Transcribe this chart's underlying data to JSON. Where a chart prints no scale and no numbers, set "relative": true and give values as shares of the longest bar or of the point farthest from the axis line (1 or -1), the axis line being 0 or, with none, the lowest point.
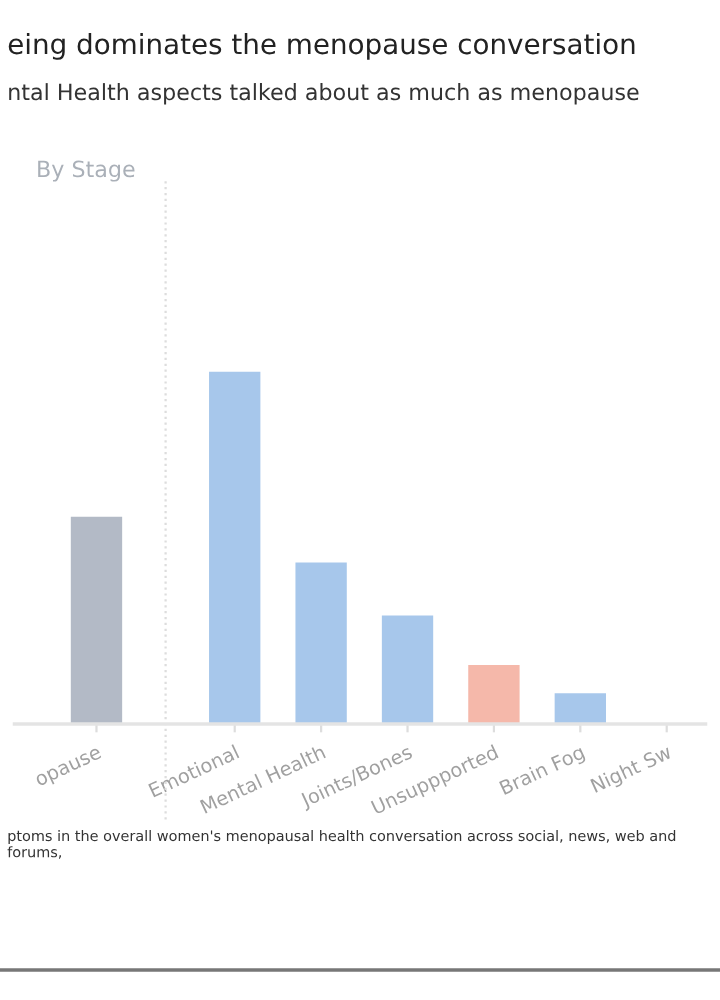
{
  "chart_data": {
    "type": "bar",
    "relative": true,
    "title": "eing dominates the menopause conversation",
    "subtitle": "ntal Health aspects talked about as much as menopause",
    "categories": [
      "opause",
      "Emotional",
      "Mental Health",
      "Joints/Bones",
      "Unsuppported",
      "Brain Fog",
      "Night Sw"
    ],
    "values": [
      0.59,
      1,
      0.46,
      0.31,
      0.17,
      0.09,
      null
    ],
    "colors": [
      "#b3bac6",
      "#a7c7eb",
      "#a7c7eb",
      "#a7c7eb",
      "#f5b8aa",
      "#a7c7eb",
      "#a7c7eb"
    ],
    "annotations": [
      "By Stage",
      "ptoms in the overall women's menopausal health conversation across social, news, web and forums,"
    ],
    "grid": false,
    "legend": false
  }
}
